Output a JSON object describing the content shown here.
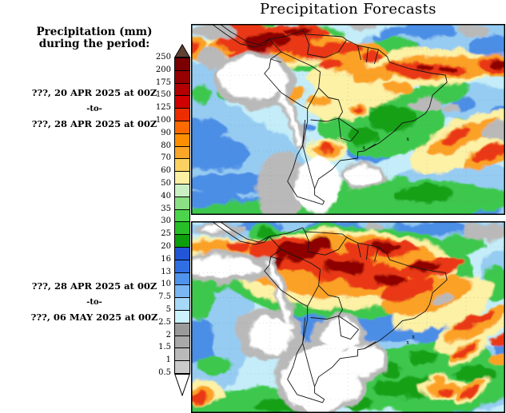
{
  "title": "Precipitation Forecasts",
  "sidebar": {
    "heading": [
      "Precipitation (mm)",
      "during the period:"
    ],
    "periods": [
      {
        "start": "???, 20 APR 2025 at 00Z",
        "separator": "-to-",
        "end": "???, 28 APR 2025 at 00Z"
      },
      {
        "start": "???, 28 APR 2025 at 00Z",
        "separator": "-to-",
        "end": "???, 06 MAY 2025 at 00Z"
      }
    ]
  },
  "colorbar": {
    "unit": "mm",
    "over_color": "#5E4234",
    "under_color": "#FFFFFF",
    "labels": [
      "250",
      "200",
      "175",
      "150",
      "125",
      "100",
      "90",
      "80",
      "70",
      "60",
      "50",
      "40",
      "35",
      "30",
      "25",
      "20",
      "16",
      "13",
      "10",
      "7.5",
      "5",
      "2.5",
      "2",
      "1.5",
      "1",
      "0.5"
    ],
    "cell_colors": [
      "#7A0000",
      "#960000",
      "#B20000",
      "#CE0000",
      "#EC2D00",
      "#FF6A00",
      "#FF8F00",
      "#FBA629",
      "#FBD262",
      "#FCF0A2",
      "#CAEFC2",
      "#8BE085",
      "#4CD54C",
      "#27BE27",
      "#0D9E0D",
      "#2255D7",
      "#2F6FE3",
      "#4F93EC",
      "#7AB7F3",
      "#A7D8F8",
      "#CCF2FC",
      "#9A9A9A",
      "#A9A9A9",
      "#B9B9B9",
      "#CACACA"
    ]
  }
}
